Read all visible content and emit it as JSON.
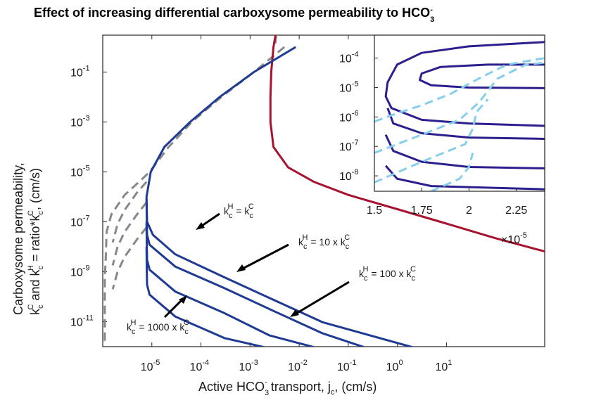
{
  "chart_data": {
    "type": "line",
    "title": "Effect of increasing differential carboxysome permeability to HCO",
    "title_sub": "3",
    "title_sup": "-",
    "xlabel": {
      "pre": "Active HCO",
      "sub3": "3",
      "supminus": "-",
      "mid": " transport, j",
      "subc": "c",
      "post": ", (cm/s)"
    },
    "ylabel_line1": "Carboxysome permeability,",
    "ylabel_line2": {
      "k1": "k",
      "k1_sup": "C",
      "k1_sub": "c",
      "and": " and k",
      "k2_sup": "H",
      "k2_sub": "c",
      "eq": " = ratio*k",
      "k3_sup": "C",
      "k3_sub": "c",
      "post": ", (cm/s)"
    },
    "x_scale": "log",
    "y_scale": "log",
    "xlim": [
      1e-06,
      1000
    ],
    "ylim": [
      1e-12,
      3
    ],
    "x_ticks": [
      {
        "value": 1e-05,
        "base": "10",
        "exp": "-5"
      },
      {
        "value": 0.0001,
        "base": "10",
        "exp": "-4"
      },
      {
        "value": 0.001,
        "base": "10",
        "exp": "-3"
      },
      {
        "value": 0.01,
        "base": "10",
        "exp": "-2"
      },
      {
        "value": 0.1,
        "base": "10",
        "exp": "-1"
      },
      {
        "value": 1,
        "base": "10",
        "exp": "0"
      },
      {
        "value": 10,
        "base": "10",
        "exp": "1"
      }
    ],
    "y_ticks": [
      {
        "value": 1e-11,
        "base": "10",
        "exp": "-11"
      },
      {
        "value": 1e-09,
        "base": "10",
        "exp": "-9"
      },
      {
        "value": 1e-07,
        "base": "10",
        "exp": "-7"
      },
      {
        "value": 1e-05,
        "base": "10",
        "exp": "-5"
      },
      {
        "value": 0.001,
        "base": "10",
        "exp": "-3"
      },
      {
        "value": 0.1,
        "base": "10",
        "exp": "-1"
      }
    ],
    "colors": {
      "blue": "#1f3a93",
      "gray": "#888888",
      "red": "#a8122e",
      "inset_blue": "#2b1f8f",
      "inset_light": "#87ceeb"
    },
    "series": [
      {
        "style": "blue-solid",
        "points": [
          [
            0.0085,
            1
          ],
          [
            0.0012,
            0.1
          ],
          [
            0.00024,
            0.01
          ],
          [
            6e-05,
            0.001
          ],
          [
            1.8e-05,
            0.0001
          ],
          [
            9.5e-06,
            1e-05
          ],
          [
            7.8e-06,
            1e-06
          ],
          [
            8e-06,
            1e-07
          ],
          [
            1.05e-05,
            3e-08
          ],
          [
            3e-05,
            5e-09
          ],
          [
            0.0003,
            6e-10
          ],
          [
            0.003,
            7.5e-11
          ],
          [
            0.03,
            9.5e-12
          ],
          [
            2.5,
            8.5e-13
          ]
        ]
      },
      {
        "style": "blue-solid",
        "points": [
          [
            7.8e-06,
            8e-07
          ],
          [
            7.9e-06,
            1e-07
          ],
          [
            8e-06,
            3e-08
          ],
          [
            9e-06,
            1.2e-08
          ],
          [
            3e-05,
            1.6e-09
          ],
          [
            0.0003,
            2.2e-10
          ],
          [
            0.003,
            2.7e-11
          ],
          [
            0.03,
            3.4e-12
          ],
          [
            0.25,
            8.5e-13
          ]
        ]
      },
      {
        "style": "blue-solid",
        "points": [
          [
            7.8e-06,
            1e-07
          ],
          [
            7.9e-06,
            1e-08
          ],
          [
            8e-06,
            3e-09
          ],
          [
            9e-06,
            1.2e-09
          ],
          [
            3e-05,
            1.6e-10
          ],
          [
            0.0003,
            2.2e-11
          ],
          [
            0.0025,
            2.8e-12
          ],
          [
            0.025,
            8.5e-13
          ]
        ]
      },
      {
        "style": "blue-solid",
        "points": [
          [
            7.8e-06,
            1e-08
          ],
          [
            7.9e-06,
            1e-09
          ],
          [
            8e-06,
            3e-10
          ],
          [
            9e-06,
            1.2e-10
          ],
          [
            3e-05,
            1.6e-11
          ],
          [
            0.0003,
            2.2e-12
          ],
          [
            0.0025,
            8.5e-13
          ]
        ]
      },
      {
        "style": "gray-dashed",
        "points": [
          [
            0.005,
            1
          ],
          [
            0.0012,
            0.1
          ],
          [
            0.00026,
            0.01
          ],
          [
            6.5e-05,
            0.001
          ],
          [
            2.2e-05,
            0.0001
          ],
          [
            9e-06,
            1e-05
          ],
          [
            5.5e-06,
            4e-06
          ],
          [
            2.8e-06,
            1.2e-06
          ],
          [
            1.5e-06,
            2e-07
          ],
          [
            1.2e-06,
            4e-08
          ],
          [
            1.15e-06,
            3e-09
          ],
          [
            1.1e-06,
            6e-10
          ],
          [
            1.1e-06,
            8e-11
          ],
          [
            1.1e-06,
            1.5e-12
          ]
        ]
      },
      {
        "style": "gray-dashed",
        "points": [
          [
            7.8e-06,
            4e-06
          ],
          [
            5e-06,
            1.5e-06
          ],
          [
            2.8e-06,
            3e-07
          ],
          [
            2e-06,
            8e-08
          ],
          [
            1.6e-06,
            1.5e-08
          ]
        ]
      },
      {
        "style": "gray-dashed",
        "points": [
          [
            7.8e-06,
            6e-07
          ],
          [
            5e-06,
            2e-07
          ],
          [
            2.8e-06,
            4e-08
          ],
          [
            2e-06,
            1e-08
          ],
          [
            1.6e-06,
            1.8e-09
          ]
        ]
      },
      {
        "style": "gray-dashed",
        "points": [
          [
            7.8e-06,
            6e-08
          ],
          [
            5e-06,
            2e-08
          ],
          [
            2.8e-06,
            4e-09
          ],
          [
            2e-06,
            1e-09
          ],
          [
            1.6e-06,
            2e-10
          ]
        ]
      },
      {
        "style": "red-solid",
        "points": [
          [
            0.0033,
            3
          ],
          [
            0.003,
            1
          ],
          [
            0.0027,
            0.1
          ],
          [
            0.0026,
            0.01
          ],
          [
            0.0026,
            0.001
          ],
          [
            0.003,
            0.0001
          ],
          [
            0.006,
            1.5e-05
          ],
          [
            0.02,
            4e-06
          ],
          [
            0.1,
            1.2e-06
          ],
          [
            1,
            3.2e-07
          ],
          [
            10,
            8.5e-08
          ],
          [
            100,
            2.2e-08
          ],
          [
            1000,
            6.5e-09
          ]
        ]
      },
      {
        "style": "gray-dashed",
        "points": [
          [
            0.0034,
            3
          ],
          [
            0.0032,
            1
          ]
        ]
      }
    ],
    "annotations": [
      {
        "label": {
          "k": "k",
          "sup1": "H",
          "sub1": "c",
          "eq": " = k",
          "sup2": "C",
          "sub2": "c"
        }
      },
      {
        "label": {
          "k": "k",
          "sup1": "H",
          "sub1": "c",
          "eq": " = 10 x k",
          "sup2": "C",
          "sub2": "c"
        }
      },
      {
        "label": {
          "k": "k",
          "sup1": "H",
          "sub1": "c",
          "eq": " = 100 x k",
          "sup2": "C",
          "sub2": "c"
        }
      },
      {
        "label": {
          "k": "k",
          "sup1": "H",
          "sub1": "c",
          "eq": " = 1000 x k",
          "sup2": "C",
          "sub2": "c"
        }
      }
    ],
    "inset": {
      "x_scale": "linear",
      "y_scale": "log",
      "xlim": [
        1.5e-05,
        2.4e-05
      ],
      "ylim": [
        3e-09,
        0.0006
      ],
      "x_ticks": [
        {
          "value": 1.5e-05,
          "label": "1.5"
        },
        {
          "value": 1.75e-05,
          "label": "1.75"
        },
        {
          "value": 2e-05,
          "label": "2"
        },
        {
          "value": 2.25e-05,
          "label": "2.25"
        }
      ],
      "x_multiplier": {
        "times": "×",
        "base": "10",
        "exp": "-5"
      },
      "y_ticks": [
        {
          "value": 0.0001,
          "base": "10",
          "exp": "-4"
        },
        {
          "value": 1e-05,
          "base": "10",
          "exp": "-5"
        },
        {
          "value": 1e-06,
          "base": "10",
          "exp": "-6"
        },
        {
          "value": 1e-07,
          "base": "10",
          "exp": "-7"
        },
        {
          "value": 1e-08,
          "base": "10",
          "exp": "-8"
        }
      ],
      "series": [
        {
          "style": "inset-blue",
          "points": [
            [
              2.4e-05,
              0.00035
            ],
            [
              2e-05,
              0.00025
            ],
            [
              1.75e-05,
              0.00015
            ],
            [
              1.62e-05,
              6e-05
            ],
            [
              1.57e-05,
              1.5e-05
            ],
            [
              1.56e-05,
              5e-06
            ],
            [
              1.59e-05,
              2e-06
            ],
            [
              1.75e-05,
              8e-07
            ],
            [
              2e-05,
              6e-07
            ],
            [
              2.4e-05,
              5e-07
            ]
          ]
        },
        {
          "style": "inset-blue",
          "points": [
            [
              2.4e-05,
              6e-05
            ],
            [
              2.1e-05,
              6e-05
            ],
            [
              1.85e-05,
              5e-05
            ],
            [
              1.75e-05,
              3e-05
            ],
            [
              1.74e-05,
              1.8e-05
            ],
            [
              1.8e-05,
              1.2e-05
            ],
            [
              2e-05,
              1e-05
            ],
            [
              2.4e-05,
              9.5e-06
            ]
          ]
        },
        {
          "style": "inset-blue",
          "points": [
            [
              1.57e-05,
              2e-06
            ],
            [
              1.6e-05,
              6e-07
            ],
            [
              1.75e-05,
              2.8e-07
            ],
            [
              2e-05,
              2e-07
            ],
            [
              2.4e-05,
              1.8e-07
            ]
          ]
        },
        {
          "style": "inset-blue",
          "points": [
            [
              1.56e-05,
              2.5e-07
            ],
            [
              1.6e-05,
              7e-08
            ],
            [
              1.75e-05,
              3e-08
            ],
            [
              2e-05,
              2e-08
            ],
            [
              2.4e-05,
              1.8e-08
            ]
          ]
        },
        {
          "style": "inset-blue",
          "points": [
            [
              1.56e-05,
              2.2e-08
            ],
            [
              1.62e-05,
              8e-09
            ],
            [
              1.8e-05,
              4.5e-09
            ],
            [
              2.4e-05,
              3.5e-09
            ]
          ]
        },
        {
          "style": "inset-light",
          "points": [
            [
              1.5e-05,
              7e-07
            ],
            [
              1.6e-05,
              1.2e-06
            ],
            [
              1.75e-05,
              2.5e-06
            ],
            [
              1.9e-05,
              6e-06
            ],
            [
              2.05e-05,
              2e-05
            ],
            [
              2.2e-05,
              6e-05
            ],
            [
              2.4e-05,
              0.0001
            ]
          ]
        },
        {
          "style": "inset-light",
          "points": [
            [
              1.5e-05,
              6e-08
            ],
            [
              1.75e-05,
              2.5e-07
            ],
            [
              1.95e-05,
              8e-07
            ],
            [
              2.05e-05,
              3e-06
            ],
            [
              2.15e-05,
              2e-05
            ],
            [
              2.3e-05,
              6e-05
            ],
            [
              2.4e-05,
              7e-05
            ]
          ]
        },
        {
          "style": "inset-light",
          "points": [
            [
              1.5e-05,
              6e-09
            ],
            [
              1.75e-05,
              3e-08
            ],
            [
              1.98e-05,
              1.2e-07
            ],
            [
              2.02e-05,
              4e-07
            ],
            [
              2.04e-05,
              1.5e-06
            ],
            [
              2.1e-05,
              4e-06
            ]
          ]
        },
        {
          "style": "inset-light",
          "points": [
            [
              1.8e-05,
              3e-09
            ],
            [
              1.95e-05,
              8e-09
            ],
            [
              2e-05,
              2e-08
            ],
            [
              2.02e-05,
              6e-08
            ]
          ]
        }
      ]
    }
  }
}
